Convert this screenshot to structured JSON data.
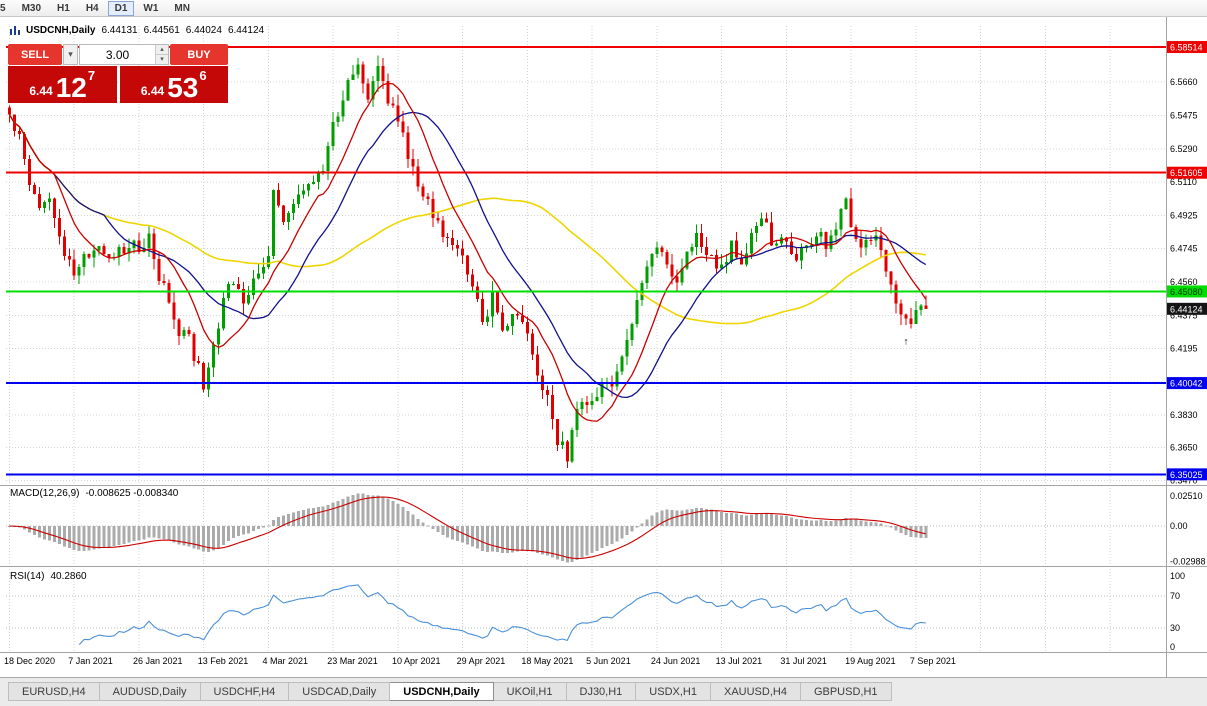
{
  "toolbar": {
    "items": [
      "5",
      "M30",
      "H1",
      "H4",
      "D1",
      "W1",
      "MN"
    ],
    "active": "D1"
  },
  "window_title": {
    "symbol_period": "USDCNH,Daily",
    "open": "6.44131",
    "high": "6.44561",
    "low": "6.44024",
    "close": "6.44124"
  },
  "trade_panel": {
    "sell_label": "SELL",
    "buy_label": "BUY",
    "lots": "3.00",
    "sell_big": "6.44",
    "sell_pips": "12",
    "sell_pt": "7",
    "buy_big": "6.44",
    "buy_pips": "53",
    "buy_pt": "6"
  },
  "indicators": {
    "macd_title": "MACD(12,26,9)",
    "macd_values": "-0.008625 -0.008340",
    "rsi_title": "RSI(14)",
    "rsi_value": "40.2860"
  },
  "tabs": {
    "items": [
      "EURUSD,H4",
      "AUDUSD,Daily",
      "USDCHF,H4",
      "USDCAD,Daily",
      "USDCNH,Daily",
      "UKOil,H1",
      "DJ30,H1",
      "USDX,H1",
      "XAUUSD,H4",
      "GBPUSD,H1"
    ],
    "active": "USDCNH,Daily"
  },
  "chart_data": {
    "type": "candlestick",
    "symbol": "USDCNH",
    "timeframe": "Daily",
    "ohlc_current": {
      "open": 6.44131,
      "high": 6.44561,
      "low": 6.44024,
      "close": 6.44124
    },
    "bars": 185,
    "last_close": 6.44124,
    "dates": [
      "18 Dec 2020",
      "7 Jan 2021",
      "26 Jan 2021",
      "13 Feb 2021",
      "4 Mar 2021",
      "23 Mar 2021",
      "10 Apr 2021",
      "29 Apr 2021",
      "18 May 2021",
      "5 Jun 2021",
      "24 Jun 2021",
      "13 Jul 2021",
      "31 Jul 2021",
      "19 Aug 2021",
      "7 Sep 2021"
    ],
    "date_days": [
      0,
      13,
      26,
      39,
      52,
      65,
      78,
      91,
      104,
      117,
      130,
      143,
      156,
      169,
      182
    ],
    "price_ticks": [
      {
        "v": 6.5851,
        "t": "6.5851"
      },
      {
        "v": 6.566,
        "t": "6.5660"
      },
      {
        "v": 6.5475,
        "t": "6.5475"
      },
      {
        "v": 6.529,
        "t": "6.5290"
      },
      {
        "v": 6.511,
        "t": "6.5110"
      },
      {
        "v": 6.4925,
        "t": "6.4925"
      },
      {
        "v": 6.4745,
        "t": "6.4745"
      },
      {
        "v": 6.456,
        "t": "6.4560"
      },
      {
        "v": 6.4375,
        "t": "6.4375"
      },
      {
        "v": 6.4195,
        "t": "6.4195"
      },
      {
        "v": 6.401,
        "t": "6.4010"
      },
      {
        "v": 6.383,
        "t": "6.3830"
      },
      {
        "v": 6.365,
        "t": "6.3650"
      },
      {
        "v": 6.347,
        "t": "6.3470"
      }
    ],
    "hlines": [
      {
        "price": 6.58514,
        "label": "6.58514",
        "color": "#ee0000",
        "width": 2,
        "text": "#ffffff"
      },
      {
        "price": 6.51605,
        "label": "6.51605",
        "color": "#ee0000",
        "width": 2,
        "text": "#ffffff"
      },
      {
        "price": 6.4508,
        "label": "6.45080",
        "color": "#00dd00",
        "width": 2,
        "text": "#003300"
      },
      {
        "price": 6.40042,
        "label": "6.40042",
        "color": "#0000ee",
        "width": 2,
        "text": "#ffffff"
      },
      {
        "price": 6.35025,
        "label": "6.35025",
        "color": "#0000ee",
        "width": 2,
        "text": "#ffffff"
      }
    ],
    "current": {
      "value": 6.44124,
      "label": "6.44124"
    },
    "markers": [
      {
        "day": 180,
        "price": 6.4215,
        "glyph": "↑"
      }
    ],
    "ma_periods": {
      "fast": 10,
      "mid": 20,
      "slow": 55
    },
    "macd": {
      "fast": 12,
      "slow": 26,
      "signal": 9,
      "ticks": [
        {
          "v": 0.0251,
          "t": "0.02510"
        },
        {
          "v": 0,
          "t": "0.00"
        },
        {
          "v": -0.02988,
          "t": "-0.02988"
        }
      ],
      "current_main": -0.008625,
      "current_signal": -0.00834
    },
    "rsi": {
      "period": 14,
      "ticks": [
        {
          "v": 100,
          "t": "100"
        },
        {
          "v": 70,
          "t": "70"
        },
        {
          "v": 30,
          "t": "30"
        },
        {
          "v": 0,
          "t": "0"
        }
      ],
      "levels": [
        70,
        30
      ],
      "current": 40.286
    },
    "price_anchors": [
      [
        0,
        6.548
      ],
      [
        2,
        6.535
      ],
      [
        4,
        6.512
      ],
      [
        6,
        6.497
      ],
      [
        8,
        6.505
      ],
      [
        10,
        6.478
      ],
      [
        13,
        6.462
      ],
      [
        15,
        6.47
      ],
      [
        18,
        6.478
      ],
      [
        21,
        6.468
      ],
      [
        24,
        6.478
      ],
      [
        26,
        6.473
      ],
      [
        28,
        6.484
      ],
      [
        30,
        6.46
      ],
      [
        32,
        6.445
      ],
      [
        34,
        6.43
      ],
      [
        36,
        6.424
      ],
      [
        39,
        6.4
      ],
      [
        41,
        6.42
      ],
      [
        43,
        6.448
      ],
      [
        45,
        6.455
      ],
      [
        47,
        6.442
      ],
      [
        49,
        6.455
      ],
      [
        52,
        6.47
      ],
      [
        53,
        6.505
      ],
      [
        55,
        6.488
      ],
      [
        57,
        6.498
      ],
      [
        59,
        6.508
      ],
      [
        61,
        6.514
      ],
      [
        63,
        6.52
      ],
      [
        65,
        6.54
      ],
      [
        68,
        6.568
      ],
      [
        70,
        6.578
      ],
      [
        72,
        6.56
      ],
      [
        74,
        6.572
      ],
      [
        76,
        6.556
      ],
      [
        78,
        6.545
      ],
      [
        80,
        6.525
      ],
      [
        82,
        6.508
      ],
      [
        84,
        6.5
      ],
      [
        86,
        6.488
      ],
      [
        88,
        6.478
      ],
      [
        91,
        6.47
      ],
      [
        93,
        6.455
      ],
      [
        95,
        6.432
      ],
      [
        97,
        6.448
      ],
      [
        99,
        6.43
      ],
      [
        101,
        6.44
      ],
      [
        104,
        6.428
      ],
      [
        106,
        6.408
      ],
      [
        108,
        6.392
      ],
      [
        110,
        6.37
      ],
      [
        112,
        6.36
      ],
      [
        114,
        6.385
      ],
      [
        117,
        6.39
      ],
      [
        119,
        6.398
      ],
      [
        121,
        6.402
      ],
      [
        123,
        6.412
      ],
      [
        125,
        6.435
      ],
      [
        127,
        6.455
      ],
      [
        129,
        6.47
      ],
      [
        130,
        6.478
      ],
      [
        132,
        6.466
      ],
      [
        134,
        6.455
      ],
      [
        136,
        6.47
      ],
      [
        138,
        6.482
      ],
      [
        140,
        6.47
      ],
      [
        143,
        6.462
      ],
      [
        145,
        6.475
      ],
      [
        147,
        6.467
      ],
      [
        149,
        6.48
      ],
      [
        151,
        6.49
      ],
      [
        153,
        6.48
      ],
      [
        156,
        6.478
      ],
      [
        158,
        6.468
      ],
      [
        160,
        6.475
      ],
      [
        162,
        6.482
      ],
      [
        164,
        6.478
      ],
      [
        166,
        6.488
      ],
      [
        168,
        6.498
      ],
      [
        170,
        6.482
      ],
      [
        172,
        6.475
      ],
      [
        174,
        6.478
      ],
      [
        176,
        6.462
      ],
      [
        178,
        6.448
      ],
      [
        180,
        6.432
      ],
      [
        182,
        6.438
      ],
      [
        184,
        6.44124
      ]
    ],
    "colors": {
      "up": "#009f00",
      "down": "#e00000",
      "ma_fast": "#cc0000",
      "ma_mid": "#11118c",
      "ma_slow": "#efd500",
      "macd_hist": "#ababab",
      "macd_signal": "#cc0000",
      "rsi": "#4a90d9",
      "grid": "#d4d4d4",
      "badge_black": "#151515"
    }
  }
}
